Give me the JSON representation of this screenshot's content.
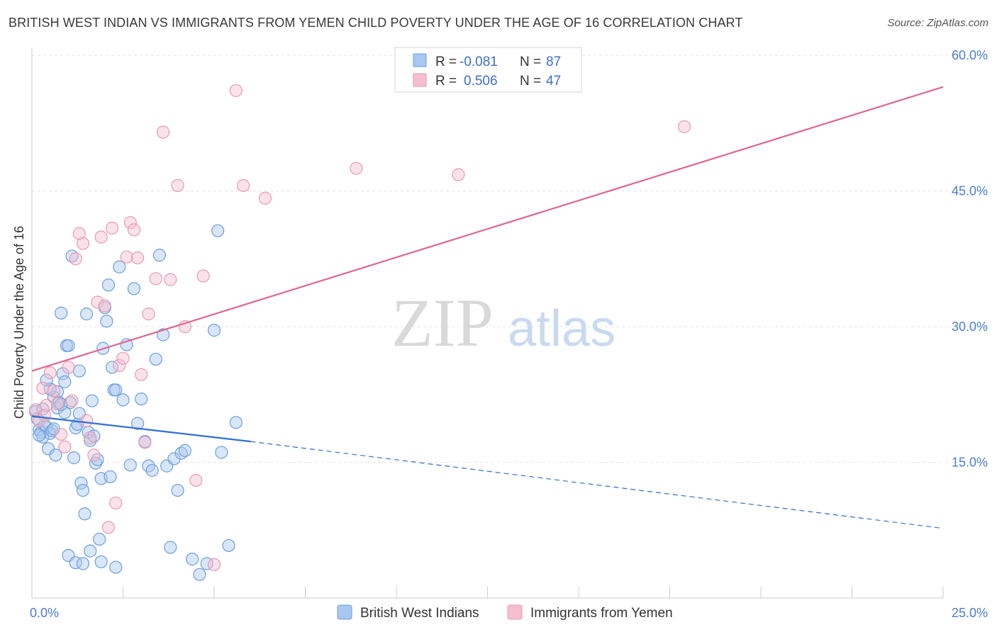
{
  "title": "BRITISH WEST INDIAN VS IMMIGRANTS FROM YEMEN CHILD POVERTY UNDER THE AGE OF 16 CORRELATION CHART",
  "source": "Source: ZipAtlas.com",
  "watermark": {
    "zip": "ZIP",
    "atlas": "atlas"
  },
  "colors": {
    "blue_fill": "#a8c8f0",
    "blue_stroke": "#6d9fdc",
    "blue_line": "#2f6fd6",
    "pink_fill": "#f6bfd0",
    "pink_stroke": "#e79ab3",
    "pink_line": "#e0668f",
    "grid": "#e3e3e3",
    "tick": "#4a7fd0"
  },
  "legend_stats": [
    {
      "r_label": "R =",
      "r_value": "-0.081",
      "n_label": "N =",
      "n_value": "87"
    },
    {
      "r_label": "R =",
      "r_value": "0.506",
      "n_label": "N =",
      "n_value": "47"
    }
  ],
  "chart_data": {
    "type": "scatter",
    "title": "BRITISH WEST INDIAN VS IMMIGRANTS FROM YEMEN CHILD POVERTY UNDER THE AGE OF 16 CORRELATION CHART",
    "xlabel": "",
    "ylabel": "Child Poverty Under the Age of 16",
    "xlim": [
      0,
      25
    ],
    "ylim": [
      0,
      60
    ],
    "x_tick_labels": [
      "0.0%",
      "25.0%"
    ],
    "y_ticks": [
      15,
      30,
      45,
      60
    ],
    "y_tick_labels": [
      "15.0%",
      "30.0%",
      "45.0%",
      "60.0%"
    ],
    "grid": true,
    "legend_position": "bottom-center",
    "series": [
      {
        "name": "British West Indians",
        "color": "#a8c8f0",
        "r": -0.081,
        "n": 87,
        "trend": {
          "x": [
            0,
            6.0
          ],
          "y": [
            20.1,
            17.3
          ],
          "dashed_to": [
            25,
            7.7
          ]
        },
        "points": [
          [
            0.1,
            20.6
          ],
          [
            0.15,
            19.8
          ],
          [
            0.2,
            18.6
          ],
          [
            0.25,
            18.3
          ],
          [
            0.3,
            17.8
          ],
          [
            0.35,
            19.1
          ],
          [
            0.4,
            18.9
          ],
          [
            0.45,
            16.5
          ],
          [
            0.5,
            18.2
          ],
          [
            0.55,
            18.5
          ],
          [
            0.6,
            22.2
          ],
          [
            0.65,
            15.8
          ],
          [
            0.7,
            21.0
          ],
          [
            0.75,
            21.6
          ],
          [
            0.8,
            31.5
          ],
          [
            0.85,
            24.8
          ],
          [
            0.9,
            23.9
          ],
          [
            0.95,
            27.9
          ],
          [
            1.0,
            27.9
          ],
          [
            1.05,
            21.6
          ],
          [
            1.1,
            37.8
          ],
          [
            1.15,
            15.5
          ],
          [
            1.2,
            18.8
          ],
          [
            1.25,
            19.2
          ],
          [
            1.3,
            20.4
          ],
          [
            1.35,
            12.7
          ],
          [
            1.4,
            11.9
          ],
          [
            1.45,
            9.3
          ],
          [
            1.5,
            31.4
          ],
          [
            1.55,
            18.3
          ],
          [
            1.6,
            17.4
          ],
          [
            1.65,
            21.8
          ],
          [
            1.7,
            17.9
          ],
          [
            1.75,
            14.9
          ],
          [
            1.8,
            15.3
          ],
          [
            1.85,
            6.5
          ],
          [
            1.9,
            13.2
          ],
          [
            1.95,
            27.6
          ],
          [
            2.0,
            32.1
          ],
          [
            2.05,
            30.6
          ],
          [
            2.1,
            34.6
          ],
          [
            2.15,
            13.4
          ],
          [
            2.2,
            25.5
          ],
          [
            2.25,
            23.0
          ],
          [
            2.3,
            23.0
          ],
          [
            2.4,
            36.6
          ],
          [
            2.5,
            21.9
          ],
          [
            2.6,
            28.0
          ],
          [
            2.7,
            14.7
          ],
          [
            2.8,
            34.2
          ],
          [
            2.9,
            19.3
          ],
          [
            3.0,
            22.0
          ],
          [
            3.1,
            17.3
          ],
          [
            3.2,
            14.6
          ],
          [
            3.3,
            14.1
          ],
          [
            3.4,
            26.4
          ],
          [
            3.5,
            37.9
          ],
          [
            3.6,
            29.1
          ],
          [
            3.7,
            14.6
          ],
          [
            3.8,
            5.6
          ],
          [
            3.9,
            15.4
          ],
          [
            4.0,
            11.9
          ],
          [
            4.1,
            16.0
          ],
          [
            4.2,
            16.3
          ],
          [
            4.4,
            4.3
          ],
          [
            4.6,
            2.6
          ],
          [
            4.8,
            3.8
          ],
          [
            5.0,
            29.6
          ],
          [
            5.1,
            40.6
          ],
          [
            5.2,
            16.1
          ],
          [
            5.4,
            5.8
          ],
          [
            5.6,
            19.4
          ],
          [
            1.0,
            4.7
          ],
          [
            1.2,
            3.9
          ],
          [
            1.4,
            3.8
          ],
          [
            1.9,
            4.0
          ],
          [
            2.3,
            3.4
          ],
          [
            1.6,
            5.2
          ],
          [
            0.7,
            22.8
          ],
          [
            0.5,
            23.1
          ],
          [
            0.4,
            24.1
          ],
          [
            0.9,
            20.5
          ],
          [
            1.3,
            25.1
          ],
          [
            0.8,
            21.4
          ],
          [
            0.6,
            18.7
          ],
          [
            0.3,
            20.9
          ],
          [
            0.2,
            18.0
          ]
        ]
      },
      {
        "name": "Immigrants from Yemen",
        "color": "#f6bfd0",
        "r": 0.506,
        "n": 47,
        "trend": {
          "x": [
            0,
            25
          ],
          "y": [
            25.1,
            56.5
          ]
        },
        "points": [
          [
            0.1,
            20.8
          ],
          [
            0.2,
            19.6
          ],
          [
            0.3,
            23.2
          ],
          [
            0.35,
            20.2
          ],
          [
            0.4,
            21.3
          ],
          [
            0.5,
            24.9
          ],
          [
            0.6,
            22.9
          ],
          [
            0.7,
            21.5
          ],
          [
            0.8,
            18.1
          ],
          [
            0.9,
            16.7
          ],
          [
            1.0,
            25.5
          ],
          [
            1.1,
            21.8
          ],
          [
            1.2,
            37.5
          ],
          [
            1.3,
            40.3
          ],
          [
            1.4,
            39.2
          ],
          [
            1.5,
            19.6
          ],
          [
            1.6,
            17.7
          ],
          [
            1.7,
            15.8
          ],
          [
            1.8,
            32.7
          ],
          [
            1.9,
            39.9
          ],
          [
            2.0,
            32.3
          ],
          [
            2.1,
            7.8
          ],
          [
            2.2,
            40.9
          ],
          [
            2.3,
            10.5
          ],
          [
            2.4,
            25.7
          ],
          [
            2.5,
            26.5
          ],
          [
            2.6,
            37.7
          ],
          [
            2.7,
            41.5
          ],
          [
            2.8,
            40.7
          ],
          [
            2.9,
            37.6
          ],
          [
            3.0,
            24.7
          ],
          [
            3.1,
            17.2
          ],
          [
            3.2,
            31.4
          ],
          [
            3.4,
            35.3
          ],
          [
            3.6,
            51.5
          ],
          [
            3.8,
            35.2
          ],
          [
            4.0,
            45.6
          ],
          [
            4.2,
            30.0
          ],
          [
            4.5,
            13.0
          ],
          [
            4.7,
            35.6
          ],
          [
            5.0,
            3.7
          ],
          [
            5.6,
            56.1
          ],
          [
            5.8,
            45.6
          ],
          [
            6.4,
            44.2
          ],
          [
            8.9,
            47.5
          ],
          [
            11.7,
            46.8
          ],
          [
            17.9,
            52.1
          ]
        ]
      }
    ]
  }
}
